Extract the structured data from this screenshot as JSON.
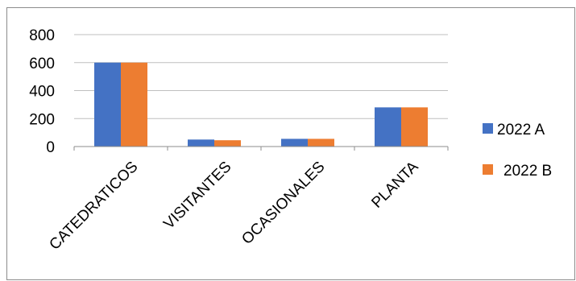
{
  "chart_data": {
    "type": "bar",
    "categories": [
      "CATEDRATICOS",
      "VISITANTES",
      "OCASIONALES",
      "PLANTA"
    ],
    "series": [
      {
        "name": "2022 A",
        "color": "#4472C4",
        "values": [
          600,
          50,
          55,
          280
        ]
      },
      {
        "name": "2022 B",
        "color": "#ED7D31",
        "values": [
          600,
          45,
          55,
          280
        ]
      }
    ],
    "yticks": [
      0,
      200,
      400,
      600,
      800
    ],
    "ylim": [
      0,
      800
    ],
    "grid": true,
    "legend_position": "right"
  }
}
